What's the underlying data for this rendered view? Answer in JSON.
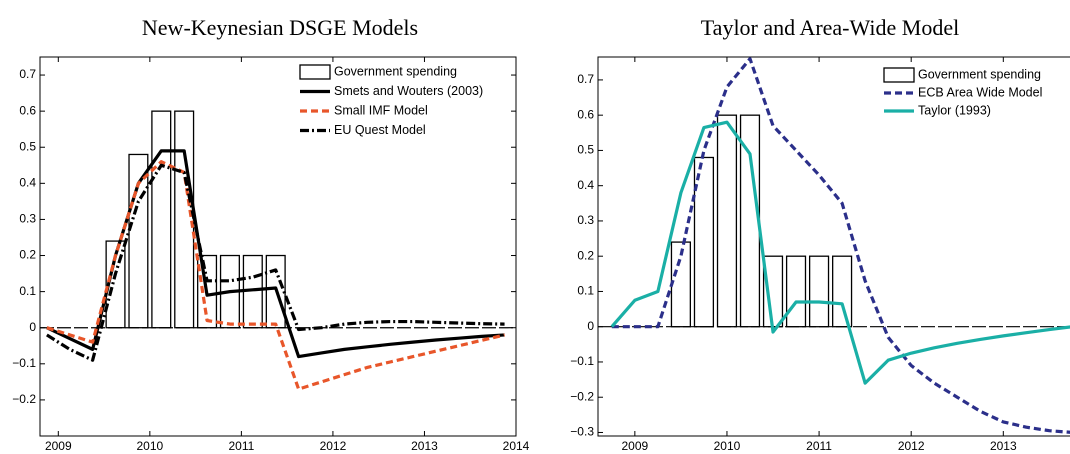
{
  "chart_data": [
    {
      "type": "line",
      "title": "New-Keynesian DSGE Models",
      "x": [
        2008.875,
        2009.125,
        2009.375,
        2009.625,
        2009.875,
        2010.125,
        2010.375,
        2010.625,
        2010.875,
        2011.125,
        2011.375,
        2011.625,
        2011.875,
        2012.125,
        2012.375,
        2012.625,
        2012.875,
        2013.125,
        2013.375,
        2013.625,
        2013.875
      ],
      "xlim": [
        2008.8,
        2014.0
      ],
      "xticks": [
        2009,
        2010,
        2011,
        2012,
        2013,
        2014
      ],
      "ylim": [
        -0.3,
        0.75
      ],
      "yticks": [
        {
          "value": -0.2,
          "label": "−0.2"
        },
        {
          "value": -0.1,
          "label": "−0.1"
        },
        0,
        0.1,
        0.2,
        0.3,
        0.4,
        0.5,
        0.6,
        0.7
      ],
      "legend": "upper right",
      "series": [
        {
          "name": "Government spending",
          "type": "bar",
          "color": "#000000",
          "values": [
            0,
            0,
            0,
            0.24,
            0.48,
            0.6,
            0.6,
            0.2,
            0.2,
            0.2,
            0.2,
            0,
            0,
            0,
            0,
            0,
            0,
            0,
            0,
            0,
            0
          ]
        },
        {
          "name": "Smets and Wouters (2003)",
          "type": "line",
          "dash": "solid",
          "color": "#000000",
          "values": [
            0,
            -0.03,
            -0.06,
            0.2,
            0.4,
            0.49,
            0.49,
            0.09,
            0.1,
            0.105,
            0.11,
            -0.08,
            -0.07,
            -0.06,
            -0.053,
            -0.046,
            -0.04,
            -0.034,
            -0.029,
            -0.024,
            -0.02
          ]
        },
        {
          "name": "Small IMF Model",
          "type": "line",
          "dash": "dashed",
          "color": "#e8562a",
          "values": [
            0,
            -0.02,
            -0.04,
            0.2,
            0.4,
            0.46,
            0.43,
            0.02,
            0.01,
            0.01,
            0.01,
            -0.17,
            -0.15,
            -0.13,
            -0.11,
            -0.095,
            -0.08,
            -0.065,
            -0.05,
            -0.035,
            -0.02
          ]
        },
        {
          "name": "EU Quest Model",
          "type": "line",
          "dash": "dashdot",
          "color": "#000000",
          "values": [
            -0.02,
            -0.06,
            -0.09,
            0.15,
            0.35,
            0.45,
            0.43,
            0.13,
            0.13,
            0.14,
            0.16,
            -0.005,
            0.0,
            0.01,
            0.015,
            0.017,
            0.017,
            0.015,
            0.013,
            0.011,
            0.01
          ]
        }
      ]
    },
    {
      "type": "line",
      "title": "Taylor and Area-Wide Model",
      "x": [
        2008.75,
        2009.0,
        2009.25,
        2009.5,
        2009.75,
        2010.0,
        2010.25,
        2010.5,
        2010.75,
        2011.0,
        2011.25,
        2011.5,
        2011.75,
        2012.0,
        2012.25,
        2012.5,
        2012.75,
        2013.0,
        2013.25,
        2013.5,
        2013.75
      ],
      "xlim": [
        2008.6,
        2013.8
      ],
      "xticks": [
        2009,
        2010,
        2011,
        2012,
        2013
      ],
      "ylim": [
        -0.31,
        0.765
      ],
      "yticks": [
        {
          "value": -0.3,
          "label": "−0.3"
        },
        {
          "value": -0.2,
          "label": "−0.2"
        },
        {
          "value": -0.1,
          "label": "−0.1"
        },
        0,
        0.1,
        0.2,
        0.3,
        0.4,
        0.5,
        0.6,
        0.7
      ],
      "legend": "upper right",
      "series": [
        {
          "name": "Government spending",
          "type": "bar",
          "color": "#000000",
          "values": [
            0,
            0,
            0,
            0.24,
            0.48,
            0.6,
            0.6,
            0.2,
            0.2,
            0.2,
            0.2,
            0,
            0,
            0,
            0,
            0,
            0,
            0,
            0,
            0,
            0
          ]
        },
        {
          "name": "ECB Area Wide Model",
          "type": "line",
          "dash": "dashed",
          "color": "#2b2f8a",
          "values": [
            0,
            0,
            0,
            0.2,
            0.5,
            0.68,
            0.76,
            0.57,
            0.5,
            0.43,
            0.35,
            0.13,
            -0.03,
            -0.11,
            -0.16,
            -0.2,
            -0.24,
            -0.27,
            -0.285,
            -0.295,
            -0.3
          ]
        },
        {
          "name": "Taylor (1993)",
          "type": "line",
          "dash": "solid",
          "color": "#1aafa6",
          "values": [
            0,
            0.075,
            0.1,
            0.38,
            0.565,
            0.58,
            0.49,
            -0.015,
            0.07,
            0.07,
            0.065,
            -0.16,
            -0.095,
            -0.075,
            -0.06,
            -0.047,
            -0.036,
            -0.026,
            -0.017,
            -0.008,
            0
          ]
        }
      ]
    }
  ]
}
